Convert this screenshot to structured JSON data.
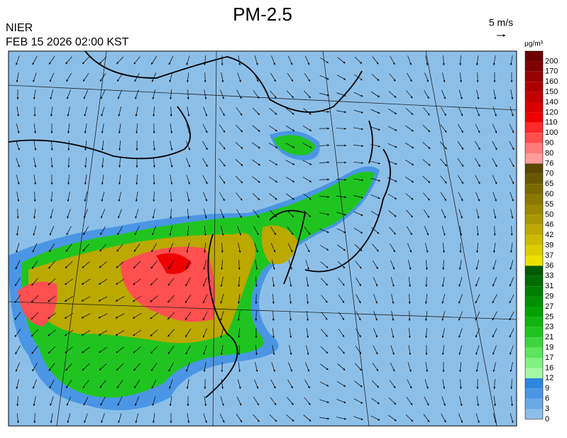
{
  "header": {
    "title": "PM-2.5",
    "agency": "NIER",
    "datetime": "FEB 15 2026 02:00 KST",
    "wind_scale": "5 m/s"
  },
  "legend": {
    "unit": "μg/m³",
    "levels": [
      200,
      170,
      160,
      150,
      140,
      120,
      110,
      100,
      90,
      80,
      76,
      70,
      65,
      60,
      55,
      50,
      46,
      42,
      39,
      37,
      36,
      33,
      31,
      29,
      27,
      25,
      23,
      21,
      19,
      17,
      16,
      12,
      9,
      6,
      3,
      0
    ],
    "colors": [
      "#6a0000",
      "#800000",
      "#960000",
      "#ac0000",
      "#c20000",
      "#d80000",
      "#ee0000",
      "#ff2a2a",
      "#ff5050",
      "#ff7a7a",
      "#ff9c9c",
      "#5a4800",
      "#6a5800",
      "#7a6800",
      "#8a7800",
      "#9a8800",
      "#aa9800",
      "#bba800",
      "#ccba00",
      "#dccc00",
      "#ece000",
      "#005a00",
      "#006c00",
      "#007e00",
      "#009000",
      "#00a200",
      "#10b410",
      "#20c420",
      "#3ed43e",
      "#5ee45e",
      "#80f080",
      "#a4f8a4",
      "#2e86e0",
      "#4a96e4",
      "#6aaae6",
      "#8cbfe8"
    ]
  }
}
